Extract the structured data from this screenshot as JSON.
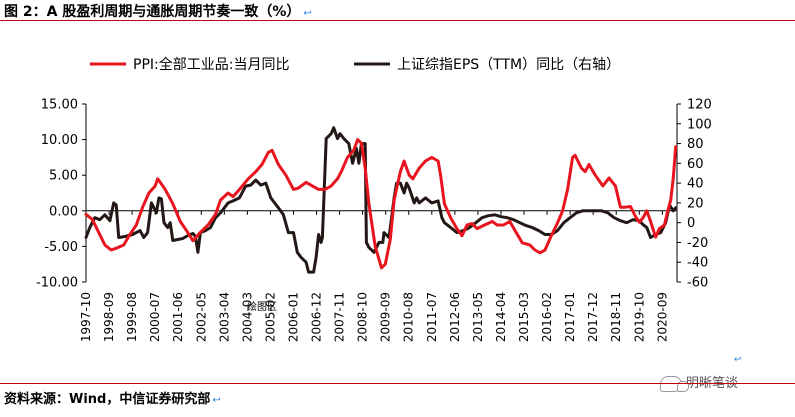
{
  "header": {
    "title": "图 2：A 股盈利周期与通胀周期节奏一致（%）",
    "edit_mark": "↩"
  },
  "footer": {
    "source": "资料来源：Wind，中信证券研究部",
    "edit_mark": "↩",
    "stray_mark": "↩",
    "watermark": "明晰笔谈"
  },
  "plot_area_label": "绘图区",
  "colors": {
    "ppi": "#e8141e",
    "eps": "#231815",
    "rule": "#c0000a",
    "edit_mark": "#2f7fe0"
  },
  "chart_data": {
    "type": "line",
    "legend_position": "top",
    "grid": false,
    "left_axis": {
      "min": -10,
      "max": 15,
      "ticks": [
        "15.00",
        "10.00",
        "5.00",
        "0.00",
        "-5.00",
        "-10.00"
      ],
      "tick_values": [
        15,
        10,
        5,
        0,
        -5,
        -10
      ]
    },
    "right_axis": {
      "min": -60,
      "max": 120,
      "ticks": [
        "120",
        "100",
        "80",
        "60",
        "40",
        "20",
        "0",
        "-20",
        "-40",
        "-60"
      ],
      "tick_values": [
        120,
        100,
        80,
        60,
        40,
        20,
        0,
        -20,
        -40,
        -60
      ]
    },
    "x_range": [
      1997.75,
      2021.25
    ],
    "x_ticks": [
      "1997-10",
      "1998-09",
      "1999-08",
      "2000-07",
      "2001-06",
      "2002-05",
      "2003-04",
      "2004-03",
      "2005-02",
      "2006-01",
      "2006-12",
      "2007-11",
      "2008-10",
      "2009-09",
      "2010-08",
      "2011-07",
      "2012-06",
      "2013-05",
      "2014-04",
      "2015-03",
      "2016-02",
      "2017-01",
      "2017-12",
      "2018-11",
      "2019-10",
      "2020-09"
    ],
    "series": [
      {
        "name": "PPI:全部工业品:当月同比",
        "axis": "left",
        "points": [
          [
            1997.75,
            -0.5
          ],
          [
            1998.0,
            -1.2
          ],
          [
            1998.25,
            -3.0
          ],
          [
            1998.5,
            -4.8
          ],
          [
            1998.75,
            -5.5
          ],
          [
            1999.0,
            -5.2
          ],
          [
            1999.25,
            -4.8
          ],
          [
            1999.5,
            -3.3
          ],
          [
            1999.75,
            -2.0
          ],
          [
            2000.0,
            0.5
          ],
          [
            2000.25,
            2.5
          ],
          [
            2000.5,
            3.5
          ],
          [
            2000.6,
            4.5
          ],
          [
            2000.9,
            3.0
          ],
          [
            2001.2,
            1.0
          ],
          [
            2001.5,
            -1.5
          ],
          [
            2001.75,
            -2.8
          ],
          [
            2002.0,
            -4.2
          ],
          [
            2002.3,
            -3.0
          ],
          [
            2002.6,
            -2.0
          ],
          [
            2002.9,
            -0.5
          ],
          [
            2003.1,
            1.5
          ],
          [
            2003.4,
            2.5
          ],
          [
            2003.6,
            2.0
          ],
          [
            2003.9,
            3.2
          ],
          [
            2004.2,
            4.5
          ],
          [
            2004.5,
            5.5
          ],
          [
            2004.75,
            6.5
          ],
          [
            2005.0,
            8.2
          ],
          [
            2005.15,
            8.5
          ],
          [
            2005.4,
            6.5
          ],
          [
            2005.7,
            5.0
          ],
          [
            2006.0,
            3.0
          ],
          [
            2006.2,
            3.2
          ],
          [
            2006.5,
            4.0
          ],
          [
            2006.75,
            3.5
          ],
          [
            2007.0,
            3.0
          ],
          [
            2007.25,
            3.0
          ],
          [
            2007.5,
            3.5
          ],
          [
            2007.75,
            4.5
          ],
          [
            2007.9,
            5.5
          ],
          [
            2008.15,
            7.5
          ],
          [
            2008.4,
            8.5
          ],
          [
            2008.55,
            10.0
          ],
          [
            2008.7,
            9.5
          ],
          [
            2008.85,
            6.0
          ],
          [
            2009.0,
            1.0
          ],
          [
            2009.25,
            -5.0
          ],
          [
            2009.5,
            -8.0
          ],
          [
            2009.65,
            -7.5
          ],
          [
            2009.85,
            -4.0
          ],
          [
            2010.0,
            1.5
          ],
          [
            2010.25,
            5.5
          ],
          [
            2010.4,
            7.0
          ],
          [
            2010.6,
            5.0
          ],
          [
            2010.75,
            4.5
          ],
          [
            2011.0,
            6.0
          ],
          [
            2011.25,
            7.0
          ],
          [
            2011.5,
            7.5
          ],
          [
            2011.75,
            7.0
          ],
          [
            2011.85,
            5.0
          ],
          [
            2012.0,
            1.0
          ],
          [
            2012.25,
            -1.0
          ],
          [
            2012.5,
            -2.5
          ],
          [
            2012.7,
            -3.5
          ],
          [
            2012.9,
            -2.0
          ],
          [
            2013.1,
            -1.8
          ],
          [
            2013.3,
            -2.5
          ],
          [
            2013.6,
            -2.0
          ],
          [
            2013.9,
            -1.5
          ],
          [
            2014.1,
            -2.0
          ],
          [
            2014.35,
            -2.0
          ],
          [
            2014.6,
            -1.5
          ],
          [
            2014.85,
            -3.0
          ],
          [
            2015.1,
            -4.5
          ],
          [
            2015.4,
            -4.8
          ],
          [
            2015.6,
            -5.5
          ],
          [
            2015.8,
            -5.9
          ],
          [
            2016.0,
            -5.5
          ],
          [
            2016.25,
            -3.5
          ],
          [
            2016.5,
            -1.7
          ],
          [
            2016.7,
            0.0
          ],
          [
            2016.9,
            3.0
          ],
          [
            2017.1,
            7.5
          ],
          [
            2017.2,
            7.8
          ],
          [
            2017.45,
            6.0
          ],
          [
            2017.6,
            5.5
          ],
          [
            2017.75,
            6.5
          ],
          [
            2018.0,
            5.0
          ],
          [
            2018.3,
            3.5
          ],
          [
            2018.55,
            4.6
          ],
          [
            2018.8,
            3.5
          ],
          [
            2019.0,
            0.5
          ],
          [
            2019.2,
            0.5
          ],
          [
            2019.4,
            0.6
          ],
          [
            2019.6,
            -0.8
          ],
          [
            2019.75,
            -1.6
          ],
          [
            2019.9,
            -1.0
          ],
          [
            2020.05,
            0.0
          ],
          [
            2020.2,
            -1.5
          ],
          [
            2020.4,
            -3.7
          ],
          [
            2020.55,
            -2.5
          ],
          [
            2020.75,
            -2.0
          ],
          [
            2020.85,
            -0.5
          ],
          [
            2021.0,
            1.5
          ],
          [
            2021.1,
            4.5
          ],
          [
            2021.2,
            9.0
          ]
        ]
      },
      {
        "name": "上证综指EPS（TTM）同比（右轴）",
        "axis": "right",
        "points": [
          [
            1997.75,
            -15
          ],
          [
            1997.9,
            -5
          ],
          [
            1998.1,
            5
          ],
          [
            1998.3,
            3
          ],
          [
            1998.5,
            8
          ],
          [
            1998.7,
            2
          ],
          [
            1998.85,
            20
          ],
          [
            1998.95,
            18
          ],
          [
            1999.05,
            -15
          ],
          [
            1999.3,
            -14
          ],
          [
            1999.6,
            -12
          ],
          [
            1999.9,
            -8
          ],
          [
            2000.05,
            -15
          ],
          [
            2000.2,
            -10
          ],
          [
            2000.35,
            20
          ],
          [
            2000.45,
            15
          ],
          [
            2000.55,
            10
          ],
          [
            2000.65,
            25
          ],
          [
            2000.75,
            24
          ],
          [
            2000.85,
            0
          ],
          [
            2001.0,
            -5
          ],
          [
            2001.1,
            0
          ],
          [
            2001.2,
            -18
          ],
          [
            2001.4,
            -17
          ],
          [
            2001.6,
            -16
          ],
          [
            2001.8,
            -13
          ],
          [
            2002.0,
            -11
          ],
          [
            2002.1,
            -14
          ],
          [
            2002.2,
            -30
          ],
          [
            2002.3,
            -10
          ],
          [
            2002.5,
            -8
          ],
          [
            2002.7,
            -5
          ],
          [
            2002.9,
            5
          ],
          [
            2003.1,
            10
          ],
          [
            2003.4,
            20
          ],
          [
            2003.6,
            22
          ],
          [
            2003.85,
            25
          ],
          [
            2004.1,
            37
          ],
          [
            2004.3,
            38
          ],
          [
            2004.5,
            43
          ],
          [
            2004.7,
            38
          ],
          [
            2004.9,
            40
          ],
          [
            2005.1,
            25
          ],
          [
            2005.25,
            20
          ],
          [
            2005.4,
            15
          ],
          [
            2005.6,
            8
          ],
          [
            2005.8,
            -10
          ],
          [
            2006.0,
            -10
          ],
          [
            2006.15,
            -30
          ],
          [
            2006.3,
            -35
          ],
          [
            2006.5,
            -40
          ],
          [
            2006.6,
            -50
          ],
          [
            2006.8,
            -50
          ],
          [
            2006.9,
            -35
          ],
          [
            2007.0,
            -12
          ],
          [
            2007.1,
            -20
          ],
          [
            2007.15,
            -15
          ],
          [
            2007.3,
            85
          ],
          [
            2007.5,
            90
          ],
          [
            2007.6,
            96
          ],
          [
            2007.75,
            85
          ],
          [
            2007.85,
            90
          ],
          [
            2008.0,
            85
          ],
          [
            2008.2,
            80
          ],
          [
            2008.35,
            60
          ],
          [
            2008.5,
            75
          ],
          [
            2008.6,
            60
          ],
          [
            2008.7,
            80
          ],
          [
            2008.85,
            80
          ],
          [
            2008.9,
            -20
          ],
          [
            2009.0,
            -25
          ],
          [
            2009.2,
            -30
          ],
          [
            2009.4,
            -20
          ],
          [
            2009.55,
            -20
          ],
          [
            2009.6,
            -10
          ],
          [
            2009.8,
            -15
          ],
          [
            2009.9,
            5
          ],
          [
            2010.0,
            25
          ],
          [
            2010.1,
            40
          ],
          [
            2010.25,
            40
          ],
          [
            2010.4,
            30
          ],
          [
            2010.5,
            40
          ],
          [
            2010.6,
            35
          ],
          [
            2010.8,
            20
          ],
          [
            2010.9,
            25
          ],
          [
            2011.0,
            20
          ],
          [
            2011.25,
            25
          ],
          [
            2011.5,
            20
          ],
          [
            2011.75,
            22
          ],
          [
            2011.9,
            5
          ],
          [
            2012.0,
            0
          ],
          [
            2012.25,
            -5
          ],
          [
            2012.5,
            -10
          ],
          [
            2012.75,
            -8
          ],
          [
            2013.0,
            -5
          ],
          [
            2013.25,
            0
          ],
          [
            2013.5,
            5
          ],
          [
            2013.75,
            7
          ],
          [
            2014.0,
            8
          ],
          [
            2014.25,
            6
          ],
          [
            2014.5,
            5
          ],
          [
            2014.75,
            3
          ],
          [
            2015.0,
            0
          ],
          [
            2015.25,
            -3
          ],
          [
            2015.5,
            -5
          ],
          [
            2015.75,
            -8
          ],
          [
            2016.0,
            -12
          ],
          [
            2016.25,
            -12
          ],
          [
            2016.5,
            -8
          ],
          [
            2016.75,
            0
          ],
          [
            2017.0,
            5
          ],
          [
            2017.25,
            10
          ],
          [
            2017.5,
            12
          ],
          [
            2017.75,
            12
          ],
          [
            2018.0,
            12
          ],
          [
            2018.25,
            12
          ],
          [
            2018.5,
            10
          ],
          [
            2018.75,
            5
          ],
          [
            2019.0,
            2
          ],
          [
            2019.25,
            0
          ],
          [
            2019.5,
            3
          ],
          [
            2019.75,
            2
          ],
          [
            2019.9,
            -2
          ],
          [
            2020.05,
            -5
          ],
          [
            2020.2,
            -15
          ],
          [
            2020.4,
            -12
          ],
          [
            2020.6,
            -10
          ],
          [
            2020.8,
            0
          ],
          [
            2020.95,
            18
          ],
          [
            2021.1,
            12
          ],
          [
            2021.2,
            15
          ]
        ]
      }
    ]
  }
}
